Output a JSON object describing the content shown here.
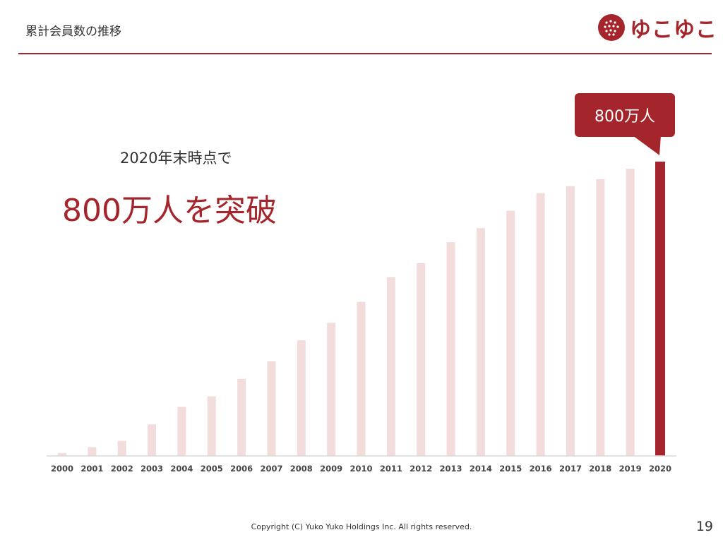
{
  "header": {
    "title": "累計会員数の推移"
  },
  "logo": {
    "text": "ゆこゆこ"
  },
  "subheadline": "2020年末時点で",
  "headline": "800万人を突破",
  "callout": "800万人",
  "footer": {
    "copyright": "Copyright (C) Yuko Yuko Holdings Inc. All rights reserved."
  },
  "page_number": "19",
  "colors": {
    "accent": "#a4262c",
    "bar_light": "#f2dcdc",
    "axis": "#d9d9d9"
  },
  "chart_data": {
    "type": "bar",
    "title": "",
    "xlabel": "",
    "ylabel": "",
    "categories": [
      "2000",
      "2001",
      "2002",
      "2003",
      "2004",
      "2005",
      "2006",
      "2007",
      "2008",
      "2009",
      "2010",
      "2011",
      "2012",
      "2013",
      "2014",
      "2015",
      "2016",
      "2017",
      "2018",
      "2019",
      "2020"
    ],
    "series": [
      {
        "values": [
          0.08,
          0.25,
          0.43,
          0.9,
          1.4,
          1.7,
          2.2,
          2.7,
          3.3,
          3.8,
          4.4,
          5.1,
          5.5,
          6.1,
          6.5,
          7.0,
          7.5,
          7.7,
          7.9,
          8.2,
          8.4
        ]
      }
    ],
    "highlight_category": "2020",
    "ylim": [
      0,
      8.4
    ],
    "grid": false,
    "legend": "none"
  }
}
